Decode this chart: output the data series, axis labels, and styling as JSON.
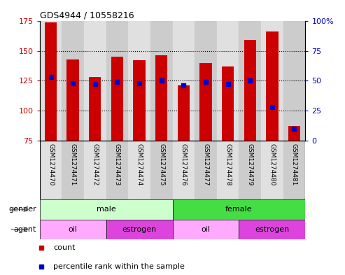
{
  "title": "GDS4944 / 10558216",
  "samples": [
    "GSM1274470",
    "GSM1274471",
    "GSM1274472",
    "GSM1274473",
    "GSM1274474",
    "GSM1274475",
    "GSM1274476",
    "GSM1274477",
    "GSM1274478",
    "GSM1274479",
    "GSM1274480",
    "GSM1274481"
  ],
  "counts": [
    174,
    143,
    128,
    145,
    142,
    146,
    121,
    140,
    137,
    159,
    166,
    87
  ],
  "percentile_ranks": [
    53,
    48,
    47,
    49,
    48,
    50,
    46,
    49,
    47,
    50,
    28,
    10
  ],
  "ymin": 75,
  "ymax": 175,
  "yticks": [
    75,
    100,
    125,
    150,
    175
  ],
  "y2ticks": [
    0,
    25,
    50,
    75,
    100
  ],
  "bar_color": "#cc0000",
  "dot_color": "#0000cc",
  "tick_color_left": "#cc0000",
  "tick_color_right": "#0000cc",
  "col_bg_even": "#e0e0e0",
  "col_bg_odd": "#cccccc",
  "gender_groups": [
    {
      "label": "male",
      "start": 0,
      "end": 6,
      "color": "#ccffcc"
    },
    {
      "label": "female",
      "start": 6,
      "end": 12,
      "color": "#44dd44"
    }
  ],
  "agent_groups": [
    {
      "label": "oil",
      "start": 0,
      "end": 3,
      "color": "#ffaaff"
    },
    {
      "label": "estrogen",
      "start": 3,
      "end": 6,
      "color": "#dd44dd"
    },
    {
      "label": "oil",
      "start": 6,
      "end": 9,
      "color": "#ffaaff"
    },
    {
      "label": "estrogen",
      "start": 9,
      "end": 12,
      "color": "#dd44dd"
    }
  ],
  "legend_count_color": "#cc0000",
  "legend_dot_color": "#0000cc"
}
